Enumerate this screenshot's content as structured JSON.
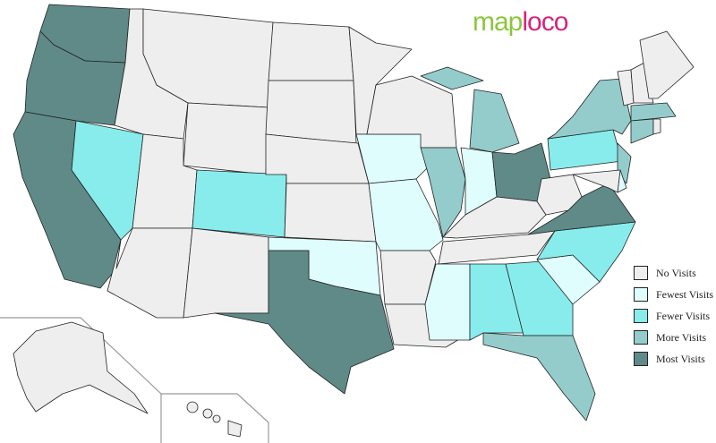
{
  "logo": {
    "part1": "map",
    "part2": "loco"
  },
  "legend": [
    {
      "key": "none",
      "label": "No Visits",
      "color": "#eeeeee"
    },
    {
      "key": "fewest",
      "label": "Fewest Visits",
      "color": "#e0fdfd"
    },
    {
      "key": "fewer",
      "label": "Fewer Visits",
      "color": "#88ecec"
    },
    {
      "key": "more",
      "label": "More Visits",
      "color": "#94cccc"
    },
    {
      "key": "most",
      "label": "Most Visits",
      "color": "#5f8a88"
    }
  ],
  "state_levels": {
    "WA": "most",
    "OR": "most",
    "CA": "most",
    "NV": "fewer",
    "ID": "none",
    "MT": "none",
    "WY": "none",
    "UT": "none",
    "CO": "fewer",
    "AZ": "none",
    "NM": "none",
    "ND": "none",
    "SD": "none",
    "NE": "none",
    "KS": "none",
    "OK": "fewest",
    "TX": "most",
    "MN": "none",
    "IA": "fewest",
    "MO": "fewest",
    "AR": "none",
    "LA": "none",
    "WI": "none",
    "IL": "more",
    "MI": "more",
    "MIU": "more",
    "IN": "fewest",
    "OH": "most",
    "KY": "none",
    "TN": "none",
    "MS": "fewest",
    "AL": "fewer",
    "GA": "fewer",
    "FL": "more",
    "SC": "fewest",
    "NC": "fewer",
    "VA": "most",
    "WV": "none",
    "PA": "fewer",
    "NY": "more",
    "NJ": "more",
    "DE": "fewest",
    "MD": "none",
    "VT": "none",
    "NH": "none",
    "ME": "none",
    "MA": "more",
    "CT": "more",
    "RI": "none",
    "AK": "none",
    "HI": "none"
  }
}
